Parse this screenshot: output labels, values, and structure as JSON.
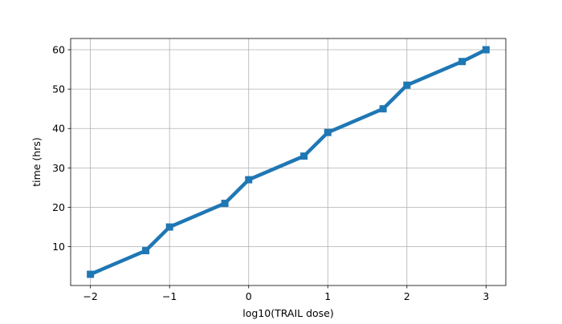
{
  "chart_data": {
    "type": "line",
    "title": "",
    "xlabel": "log10(TRAIL dose)",
    "ylabel": "time (hrs)",
    "xlim": [
      -2.25,
      3.25
    ],
    "ylim": [
      0.15,
      62.85
    ],
    "grid": true,
    "xticks": [
      -2,
      -1,
      0,
      1,
      2,
      3
    ],
    "xtick_labels": [
      "−2",
      "−1",
      "0",
      "1",
      "2",
      "3"
    ],
    "yticks": [
      10,
      20,
      30,
      40,
      50,
      60
    ],
    "ytick_labels": [
      "10",
      "20",
      "30",
      "40",
      "50",
      "60"
    ],
    "series": [
      {
        "name": "",
        "color": "#1f77b4",
        "marker": "square",
        "x": [
          -2,
          -1.301,
          -1,
          -0.301,
          0,
          0.699,
          1,
          1.699,
          2,
          2.699,
          3
        ],
        "y": [
          3,
          9,
          15,
          21,
          27,
          33,
          39,
          45,
          51,
          57,
          60
        ]
      }
    ]
  }
}
